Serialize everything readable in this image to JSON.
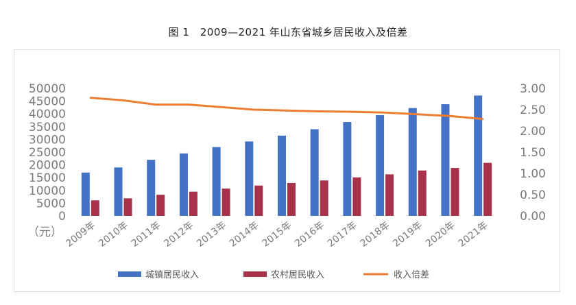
{
  "chart_data": {
    "type": "bar",
    "title": "图 1　2009—2021 年山东省城乡居民收入及倍差",
    "unit_label": "（元）",
    "categories": [
      "2009年",
      "2010年",
      "2011年",
      "2012年",
      "2013年",
      "2014年",
      "2015年",
      "2016年",
      "2017年",
      "2018年",
      "2019年",
      "2020年",
      "2021年"
    ],
    "series": [
      {
        "name": "城镇居民收入",
        "type": "bar",
        "axis": "left",
        "color": "#4472c4",
        "values": [
          17000,
          19000,
          22000,
          24500,
          27000,
          29200,
          31500,
          34000,
          36800,
          39500,
          42300,
          43800,
          47200
        ]
      },
      {
        "name": "农村居民收入",
        "type": "bar",
        "axis": "left",
        "color": "#a8324a",
        "values": [
          6100,
          6900,
          8300,
          9500,
          10700,
          11900,
          12900,
          13900,
          15100,
          16300,
          17800,
          18800,
          20800
        ]
      },
      {
        "name": "收入倍差",
        "type": "line",
        "axis": "right",
        "color": "#ed7d31",
        "values": [
          2.78,
          2.72,
          2.62,
          2.62,
          2.56,
          2.5,
          2.48,
          2.46,
          2.45,
          2.43,
          2.39,
          2.35,
          2.28
        ]
      }
    ],
    "y_left": {
      "min": 0,
      "max": 50000,
      "ticks": [
        "0",
        "5000",
        "10000",
        "15000",
        "20000",
        "25000",
        "30000",
        "35000",
        "40000",
        "45000",
        "50000"
      ]
    },
    "y_right": {
      "min": 0,
      "max": 3,
      "ticks": [
        "0.00",
        "0.50",
        "1.00",
        "1.50",
        "2.00",
        "2.50",
        "3.00"
      ]
    },
    "grid": false,
    "legend_position": "bottom"
  }
}
